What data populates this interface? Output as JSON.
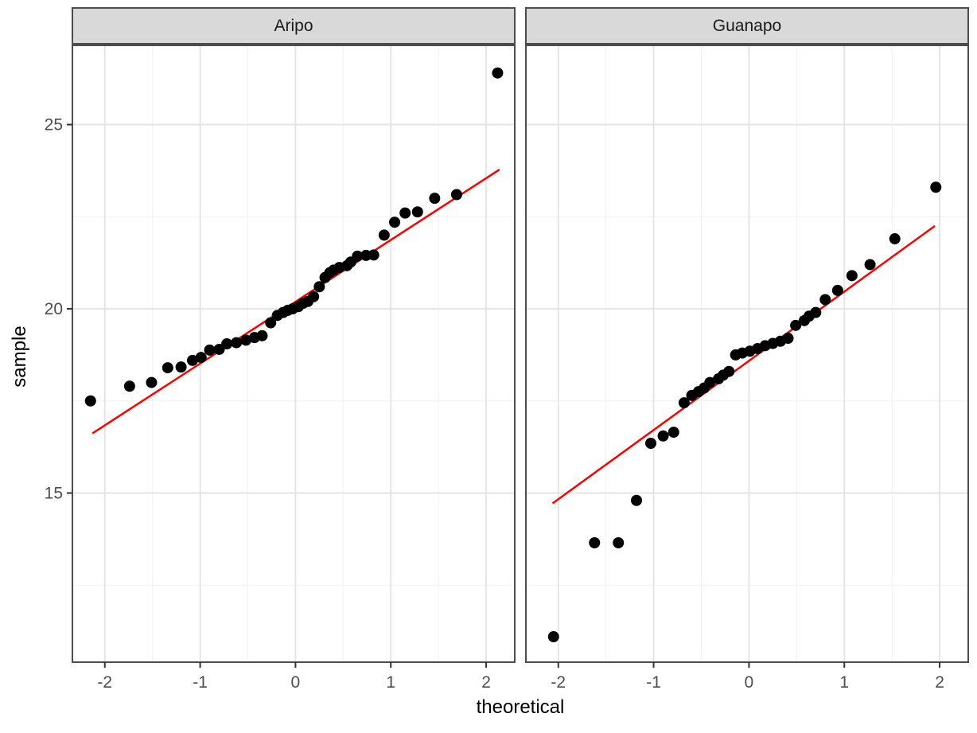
{
  "figure": {
    "kind": "faceted-qq-plot",
    "background": "#FFFFFF"
  },
  "axes": {
    "x": {
      "label": "theoretical",
      "ticks": [
        "-2",
        "-1",
        "0",
        "1",
        "2"
      ],
      "tick_values": [
        -2,
        -1,
        0,
        1,
        2
      ],
      "minor": [
        -1.5,
        -0.5,
        0.5,
        1.5
      ],
      "domain": [
        -2.34,
        2.3
      ]
    },
    "y": {
      "label": "sample",
      "ticks": [
        "15",
        "20",
        "25"
      ],
      "tick_values": [
        15,
        20,
        25
      ],
      "minor": [
        12.5,
        17.5,
        22.5
      ],
      "domain": [
        10.41,
        27.15
      ]
    }
  },
  "style": {
    "panel_fill": "#FFFFFF",
    "panel_border": "#4D4D4D",
    "grid_major": "#E3E3E3",
    "grid_minor": "#F1F1F1",
    "tick_color": "#333333",
    "tick_text": "#4D4D4D",
    "strip_fill": "#D9D9D9",
    "strip_text": "#1A1A1A",
    "point_color": "#000000",
    "line_color": "#FF0000"
  },
  "chart_data": [
    {
      "type": "scatter",
      "facet": "Aripo",
      "xlabel": "theoretical",
      "ylabel": "sample",
      "points": [
        [
          -2.15,
          17.5
        ],
        [
          -1.74,
          17.9
        ],
        [
          -1.51,
          18.0
        ],
        [
          -1.34,
          18.4
        ],
        [
          -1.2,
          18.42
        ],
        [
          -1.08,
          18.6
        ],
        [
          -0.99,
          18.68
        ],
        [
          -0.9,
          18.88
        ],
        [
          -0.8,
          18.9
        ],
        [
          -0.72,
          19.05
        ],
        [
          -0.62,
          19.08
        ],
        [
          -0.52,
          19.15
        ],
        [
          -0.43,
          19.22
        ],
        [
          -0.35,
          19.27
        ],
        [
          -0.26,
          19.62
        ],
        [
          -0.19,
          19.82
        ],
        [
          -0.13,
          19.9
        ],
        [
          -0.08,
          19.96
        ],
        [
          -0.03,
          20.0
        ],
        [
          0.03,
          20.06
        ],
        [
          0.08,
          20.15
        ],
        [
          0.13,
          20.2
        ],
        [
          0.19,
          20.33
        ],
        [
          0.25,
          20.6
        ],
        [
          0.31,
          20.85
        ],
        [
          0.36,
          20.98
        ],
        [
          0.4,
          21.05
        ],
        [
          0.46,
          21.12
        ],
        [
          0.54,
          21.17
        ],
        [
          0.58,
          21.27
        ],
        [
          0.65,
          21.43
        ],
        [
          0.74,
          21.45
        ],
        [
          0.82,
          21.46
        ],
        [
          0.93,
          22.0
        ],
        [
          1.04,
          22.35
        ],
        [
          1.15,
          22.6
        ],
        [
          1.28,
          22.63
        ],
        [
          1.46,
          23.0
        ],
        [
          1.69,
          23.1
        ],
        [
          2.12,
          26.4
        ]
      ],
      "reference_line": {
        "x": [
          -2.13,
          2.14
        ],
        "y": [
          16.62,
          23.78
        ]
      }
    },
    {
      "type": "scatter",
      "facet": "Guanapo",
      "xlabel": "theoretical",
      "ylabel": "sample",
      "points": [
        [
          -2.05,
          11.1
        ],
        [
          -1.62,
          13.65
        ],
        [
          -1.37,
          13.65
        ],
        [
          -1.18,
          14.8
        ],
        [
          -1.03,
          16.35
        ],
        [
          -0.9,
          16.55
        ],
        [
          -0.79,
          16.65
        ],
        [
          -0.68,
          17.45
        ],
        [
          -0.6,
          17.65
        ],
        [
          -0.53,
          17.75
        ],
        [
          -0.47,
          17.85
        ],
        [
          -0.41,
          18.0
        ],
        [
          -0.32,
          18.1
        ],
        [
          -0.27,
          18.2
        ],
        [
          -0.21,
          18.3
        ],
        [
          -0.14,
          18.75
        ],
        [
          -0.07,
          18.8
        ],
        [
          0.01,
          18.85
        ],
        [
          0.09,
          18.92
        ],
        [
          0.17,
          19.0
        ],
        [
          0.25,
          19.06
        ],
        [
          0.33,
          19.12
        ],
        [
          0.41,
          19.2
        ],
        [
          0.49,
          19.55
        ],
        [
          0.58,
          19.68
        ],
        [
          0.63,
          19.8
        ],
        [
          0.7,
          19.9
        ],
        [
          0.8,
          20.25
        ],
        [
          0.93,
          20.5
        ],
        [
          1.08,
          20.9
        ],
        [
          1.27,
          21.2
        ],
        [
          1.53,
          21.9
        ],
        [
          1.96,
          23.3
        ]
      ],
      "reference_line": {
        "x": [
          -2.06,
          1.95
        ],
        "y": [
          14.72,
          22.25
        ]
      }
    }
  ]
}
